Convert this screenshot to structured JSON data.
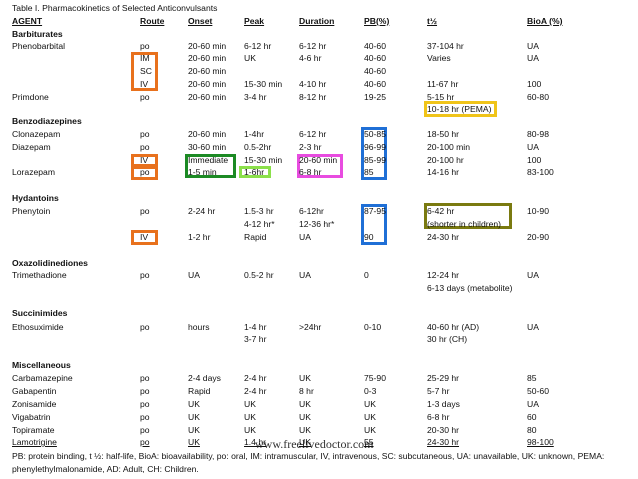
{
  "title": "Table I. Pharmacokinetics of Selected Anticonvulsants",
  "table": {
    "headers": [
      "AGENT",
      "Route",
      "Onset",
      "Peak",
      "Duration",
      "PB(%)",
      "t½",
      "BioA (%)"
    ],
    "rows": [
      {
        "section": "Barbiturates"
      },
      {
        "cells": [
          "Phenobarbital",
          "po",
          "20-60 min",
          "6-12 hr",
          "6-12 hr",
          "40-60",
          "37-104 hr",
          "UA"
        ]
      },
      {
        "cells": [
          null,
          "IM",
          "20-60 min",
          "UK",
          "4-6 hr",
          "40-60",
          "Varies",
          "UA"
        ]
      },
      {
        "cells": [
          null,
          "SC",
          "20-60 min",
          null,
          null,
          "40-60",
          null,
          null
        ]
      },
      {
        "cells": [
          null,
          "IV",
          "20-60 min",
          "15-30 min",
          "4-10 hr",
          "40-60",
          "11-67 hr",
          "100"
        ]
      },
      {
        "cells": [
          "Primdone",
          "po",
          "20-60 min",
          "3-4 hr",
          "8-12 hr",
          "19-25",
          "5-15 hr",
          "60-80"
        ]
      },
      {
        "cells": [
          null,
          null,
          null,
          null,
          null,
          null,
          "10-18 hr (PEMA)",
          null
        ]
      },
      {
        "section": "Benzodiazepines"
      },
      {
        "cells": [
          "Clonazepam",
          "po",
          "20-60 min",
          "1-4hr",
          "6-12 hr",
          "50-85",
          "18-50 hr",
          "80-98"
        ]
      },
      {
        "cells": [
          "Diazepam",
          "po",
          "30-60 min",
          "0.5-2hr",
          "2-3 hr",
          "96-99",
          "20-100 min",
          "UA"
        ]
      },
      {
        "cells": [
          null,
          "IV",
          "Immediate",
          "15-30 min",
          "20-60 min",
          "85-99",
          "20-100 hr",
          "100"
        ]
      },
      {
        "cells": [
          "Lorazepam",
          "po",
          "1-5 min",
          "1-6hr",
          "6-8 hr",
          "85",
          "14-16 hr",
          "83-100"
        ]
      },
      {
        "section": "Hydantoins"
      },
      {
        "cells": [
          "Phenytoin",
          "po",
          "2-24 hr",
          "1.5-3 hr",
          "6-12hr",
          "87-95",
          "6-42 hr",
          "10-90"
        ]
      },
      {
        "cells": [
          null,
          null,
          null,
          "4-12 hr*",
          "12-36 hr*",
          null,
          "(shorter in children)",
          null
        ]
      },
      {
        "cells": [
          null,
          "IV",
          "1-2 hr",
          "Rapid",
          "UA",
          "90",
          "24-30 hr",
          "20-90"
        ]
      },
      {
        "section": "Oxazolidinediones"
      },
      {
        "cells": [
          "Trimethadione",
          "po",
          "UA",
          "0.5-2 hr",
          "UA",
          "0",
          "12-24 hr",
          "UA"
        ]
      },
      {
        "cells": [
          null,
          null,
          null,
          null,
          null,
          null,
          "6-13 days (metabolite)",
          null
        ]
      },
      {
        "section": "Succinimides"
      },
      {
        "cells": [
          "Ethosuximide",
          "po",
          "hours",
          "1-4 hr",
          ">24hr",
          "0-10",
          "40-60 hr (AD)",
          "UA"
        ]
      },
      {
        "cells": [
          null,
          null,
          null,
          "3-7 hr",
          null,
          null,
          "30 hr (CH)",
          null
        ]
      },
      {
        "section": "Miscellaneous"
      },
      {
        "cells": [
          "Carbamazepine",
          "po",
          "2-4 days",
          "2-4 hr",
          "UK",
          "75-90",
          "25-29 hr",
          "85"
        ]
      },
      {
        "cells": [
          "Gabapentin",
          "po",
          "Rapid",
          "2-4 hr",
          "8 hr",
          "0-3",
          "5-7 hr",
          "50-60"
        ]
      },
      {
        "cells": [
          "Zonisamide",
          "po",
          "UK",
          "UK",
          "UK",
          "UK",
          "1-3 days",
          "UA"
        ]
      },
      {
        "cells": [
          "Vigabatrin",
          "po",
          "UK",
          "UK",
          "UK",
          "UK",
          "6-8 hr",
          "60"
        ]
      },
      {
        "cells": [
          "Topiramate",
          "po",
          "UK",
          "UK",
          "UK",
          "UK",
          "20-30 hr",
          "80"
        ]
      },
      {
        "cells": [
          "Lamotrigine",
          "po",
          "UK",
          "1.4 hr",
          "UK",
          "55",
          "24-30 hr",
          "98-100"
        ]
      }
    ]
  },
  "footnote": "PB: protein binding, t ½: half-life, BioA: bioavailability, po: oral, IM: intramuscular, IV, intravenous, SC: subcutaneous, UA: unavailable, UK: unknown, PEMA: phenylethylmalonamide, AD: Adult, CH: Children.",
  "watermark": "www.freelivedoctor.com"
}
